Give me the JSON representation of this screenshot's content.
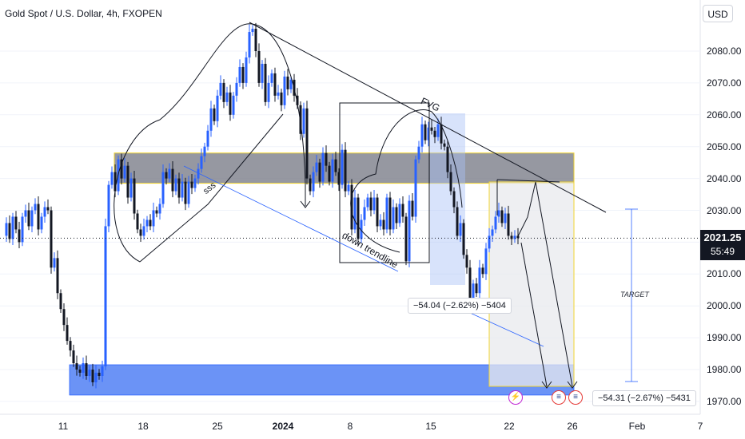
{
  "header": {
    "symbol_title": "Gold Spot / U.S. Dollar, 4h, FXOPEN",
    "currency": "USD"
  },
  "price_axis": {
    "labels": [
      "2080.00",
      "2070.00",
      "2060.00",
      "2050.00",
      "2040.00",
      "2030.00",
      "2010.00",
      "2000.00",
      "1990.00",
      "1980.00",
      "1970.00"
    ],
    "current_price": "2021.25",
    "countdown": "55:49"
  },
  "time_axis": {
    "labels": [
      "11",
      "18",
      "25",
      "2024",
      "8",
      "15",
      "22",
      "26",
      "Feb",
      "7"
    ]
  },
  "annotations": {
    "fvg": "FVG",
    "sss": "sss",
    "down_trendline": "down trendline",
    "target": "TARGET",
    "measure_1": "−54.04 (−2.62%) −5404",
    "measure_2": "−54.31 (−2.67%) −5431"
  },
  "colors": {
    "up": "#2962ff",
    "down": "#131722",
    "zone_gray": "#787b86",
    "zone_border": "#f2d530",
    "support_blue": "#5b87f5"
  },
  "chart_data": {
    "type": "candlestick",
    "symbol": "Gold Spot / U.S. Dollar",
    "timeframe": "4h",
    "broker": "FXOPEN",
    "currency": "USD",
    "ylim": [
      1967,
      2089
    ],
    "y_ticks": [
      1970,
      1980,
      1990,
      2000,
      2010,
      2020,
      2030,
      2040,
      2050,
      2060,
      2070,
      2080
    ],
    "x_tick_labels": [
      "11",
      "18",
      "25",
      "2024",
      "8",
      "15",
      "22",
      "26",
      "Feb",
      "7"
    ],
    "last_price": 2021.25,
    "zones": [
      {
        "kind": "resistance",
        "top": 2048,
        "bottom": 2038.5
      },
      {
        "kind": "support",
        "top": 1981.5,
        "bottom": 1972
      }
    ],
    "measurements": [
      {
        "change": -54.04,
        "percent": -2.62,
        "ticks": -5404
      },
      {
        "change": -54.31,
        "percent": -2.67,
        "ticks": -5431
      }
    ],
    "close_path": [
      [
        0,
        2022
      ],
      [
        6,
        2026
      ],
      [
        10,
        2021
      ],
      [
        14,
        2028
      ],
      [
        18,
        2024
      ],
      [
        22,
        2020
      ],
      [
        26,
        2028
      ],
      [
        30,
        2030
      ],
      [
        34,
        2025
      ],
      [
        38,
        2030
      ],
      [
        42,
        2032
      ],
      [
        46,
        2024
      ],
      [
        50,
        2028
      ],
      [
        54,
        2031
      ],
      [
        58,
        2030
      ],
      [
        62,
        2012
      ],
      [
        66,
        2015
      ],
      [
        70,
        2004
      ],
      [
        74,
        1999
      ],
      [
        78,
        1994
      ],
      [
        82,
        1989
      ],
      [
        86,
        1986
      ],
      [
        90,
        1982
      ],
      [
        94,
        1980
      ],
      [
        98,
        1979
      ],
      [
        102,
        1982
      ],
      [
        106,
        1978
      ],
      [
        110,
        1980
      ],
      [
        114,
        1976
      ],
      [
        118,
        1979
      ],
      [
        122,
        1978
      ],
      [
        126,
        1981
      ],
      [
        130,
        2025
      ],
      [
        134,
        2038
      ],
      [
        138,
        2042
      ],
      [
        142,
        2036
      ],
      [
        146,
        2046
      ],
      [
        150,
        2040
      ],
      [
        154,
        2044
      ],
      [
        158,
        2034
      ],
      [
        162,
        2040
      ],
      [
        166,
        2029
      ],
      [
        170,
        2024
      ],
      [
        174,
        2022
      ],
      [
        178,
        2025
      ],
      [
        182,
        2027
      ],
      [
        186,
        2025
      ],
      [
        190,
        2030
      ],
      [
        194,
        2029
      ],
      [
        198,
        2032
      ],
      [
        202,
        2042
      ],
      [
        206,
        2040
      ],
      [
        210,
        2043
      ],
      [
        214,
        2036
      ],
      [
        218,
        2040
      ],
      [
        222,
        2034
      ],
      [
        226,
        2039
      ],
      [
        230,
        2032
      ],
      [
        234,
        2039
      ],
      [
        238,
        2037
      ],
      [
        242,
        2040
      ],
      [
        246,
        2043
      ],
      [
        250,
        2047
      ],
      [
        254,
        2050
      ],
      [
        258,
        2055
      ],
      [
        262,
        2062
      ],
      [
        266,
        2058
      ],
      [
        270,
        2066
      ],
      [
        274,
        2070
      ],
      [
        278,
        2064
      ],
      [
        282,
        2067
      ],
      [
        286,
        2060
      ],
      [
        290,
        2066
      ],
      [
        294,
        2070
      ],
      [
        298,
        2075
      ],
      [
        302,
        2070
      ],
      [
        306,
        2078
      ],
      [
        310,
        2086
      ],
      [
        314,
        2087
      ],
      [
        318,
        2080
      ],
      [
        322,
        2070
      ],
      [
        326,
        2076
      ],
      [
        330,
        2064
      ],
      [
        334,
        2070
      ],
      [
        338,
        2073
      ],
      [
        342,
        2066
      ],
      [
        346,
        2067
      ],
      [
        350,
        2063
      ],
      [
        354,
        2072
      ],
      [
        358,
        2068
      ],
      [
        362,
        2071
      ],
      [
        366,
        2066
      ],
      [
        370,
        2063
      ],
      [
        374,
        2054
      ],
      [
        378,
        2062
      ],
      [
        382,
        2040
      ],
      [
        386,
        2036
      ],
      [
        390,
        2042
      ],
      [
        394,
        2045
      ],
      [
        398,
        2039
      ],
      [
        402,
        2048
      ],
      [
        406,
        2044
      ],
      [
        410,
        2039
      ],
      [
        414,
        2046
      ],
      [
        418,
        2042
      ],
      [
        422,
        2038
      ],
      [
        426,
        2049
      ],
      [
        430,
        2036
      ],
      [
        434,
        2038
      ],
      [
        438,
        2024
      ],
      [
        442,
        2034
      ],
      [
        446,
        2021
      ],
      [
        450,
        2027
      ],
      [
        454,
        2031
      ],
      [
        458,
        2034
      ],
      [
        462,
        2030
      ],
      [
        466,
        2034
      ],
      [
        470,
        2025
      ],
      [
        474,
        2027
      ],
      [
        478,
        2024
      ],
      [
        482,
        2034
      ],
      [
        486,
        2024
      ],
      [
        490,
        2031
      ],
      [
        494,
        2026
      ],
      [
        498,
        2032
      ],
      [
        502,
        2028
      ],
      [
        506,
        2014
      ],
      [
        510,
        2033
      ],
      [
        514,
        2028
      ],
      [
        518,
        2046
      ],
      [
        522,
        2050
      ],
      [
        526,
        2057
      ],
      [
        530,
        2052
      ],
      [
        534,
        2056
      ],
      [
        538,
        2055
      ],
      [
        542,
        2053
      ],
      [
        546,
        2057
      ],
      [
        550,
        2051
      ],
      [
        554,
        2050
      ],
      [
        558,
        2042
      ],
      [
        562,
        2036
      ],
      [
        566,
        2031
      ],
      [
        570,
        2022
      ],
      [
        574,
        2026
      ],
      [
        578,
        2016
      ],
      [
        582,
        2012
      ],
      [
        586,
        2002
      ],
      [
        590,
        2007
      ],
      [
        594,
        2004
      ],
      [
        598,
        2012
      ],
      [
        602,
        2010
      ],
      [
        606,
        2018
      ],
      [
        610,
        2022
      ],
      [
        614,
        2024
      ],
      [
        618,
        2028
      ],
      [
        622,
        2030
      ],
      [
        626,
        2026
      ],
      [
        630,
        2029
      ],
      [
        634,
        2022
      ],
      [
        638,
        2021
      ],
      [
        642,
        2022
      ],
      [
        646,
        2021.25
      ]
    ]
  }
}
